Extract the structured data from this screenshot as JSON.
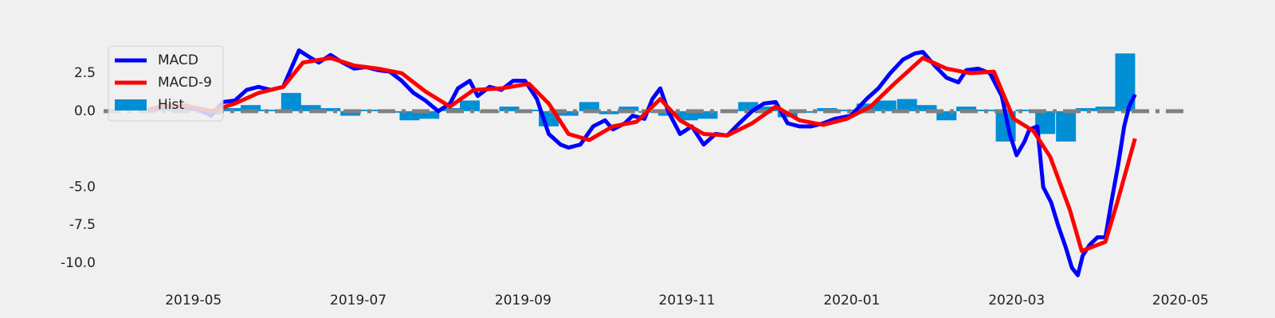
{
  "chart_data": {
    "type": "line",
    "xlim": [
      2019.242,
      2020.34
    ],
    "xticks": [
      {
        "value": 2019.333,
        "label": "2019-05"
      },
      {
        "value": 2019.5,
        "label": "2019-07"
      },
      {
        "value": 2019.667,
        "label": "2019-09"
      },
      {
        "value": 2019.833,
        "label": "2019-11"
      },
      {
        "value": 2020.0,
        "label": "2020-01"
      },
      {
        "value": 2020.167,
        "label": "2020-03"
      },
      {
        "value": 2020.333,
        "label": "2020-05"
      }
    ],
    "ylim": [
      -11.1,
      4.7
    ],
    "yticks": [
      2.5,
      0.0,
      -5.0,
      -7.5,
      -10.0
    ],
    "grid": false,
    "legend": "upper left",
    "hline": {
      "y": 0,
      "color": "#808080",
      "style": "dashdot"
    },
    "series": [
      {
        "name": "Hist",
        "type": "bar",
        "color": "#008fd5",
        "x": [
          2019.291,
          2019.311,
          2019.331,
          2019.351,
          2019.371,
          2019.391,
          2019.411,
          2019.432,
          2019.452,
          2019.472,
          2019.492,
          2019.512,
          2019.532,
          2019.552,
          2019.572,
          2019.593,
          2019.613,
          2019.633,
          2019.653,
          2019.673,
          2019.693,
          2019.713,
          2019.734,
          2019.754,
          2019.774,
          2019.794,
          2019.814,
          2019.834,
          2019.854,
          2019.874,
          2019.895,
          2019.915,
          2019.935,
          2019.955,
          2019.975,
          2019.995,
          2020.015,
          2020.035,
          2020.056,
          2020.076,
          2020.096,
          2020.116,
          2020.136,
          2020.156,
          2020.176,
          2020.196,
          2020.217,
          2020.237,
          2020.257,
          2020.277
        ],
        "values": [
          0.1,
          0.3,
          0.2,
          -0.2,
          0.2,
          0.4,
          0.1,
          1.2,
          0.4,
          0.2,
          -0.3,
          0.1,
          -0.1,
          -0.6,
          -0.5,
          0.2,
          0.7,
          -0.1,
          0.3,
          0.1,
          -1.0,
          -0.3,
          0.6,
          -0.2,
          0.3,
          -0.1,
          -0.3,
          -0.6,
          -0.5,
          0.0,
          0.6,
          0.3,
          -0.4,
          -0.1,
          0.2,
          0.1,
          0.5,
          0.7,
          0.8,
          0.4,
          -0.6,
          0.3,
          0.1,
          -2.0,
          0.1,
          -1.5,
          -2.0,
          0.2,
          0.3,
          3.8
        ]
      },
      {
        "name": "MACD",
        "color": "#0000ff",
        "x": [
          2019.287,
          2019.299,
          2019.311,
          2019.323,
          2019.339,
          2019.351,
          2019.363,
          2019.375,
          2019.387,
          2019.399,
          2019.411,
          2019.424,
          2019.432,
          2019.44,
          2019.452,
          2019.46,
          2019.472,
          2019.484,
          2019.496,
          2019.508,
          2019.52,
          2019.532,
          2019.544,
          2019.556,
          2019.568,
          2019.581,
          2019.593,
          2019.601,
          2019.613,
          2019.621,
          2019.633,
          2019.645,
          2019.657,
          2019.669,
          2019.681,
          2019.693,
          2019.705,
          2019.713,
          2019.725,
          2019.738,
          2019.75,
          2019.758,
          2019.77,
          2019.778,
          2019.79,
          2019.798,
          2019.806,
          2019.814,
          2019.826,
          2019.838,
          2019.85,
          2019.862,
          2019.874,
          2019.886,
          2019.899,
          2019.911,
          2019.923,
          2019.935,
          2019.947,
          2019.959,
          2019.971,
          2019.983,
          2019.999,
          2020.015,
          2020.027,
          2020.039,
          2020.052,
          2020.064,
          2020.072,
          2020.084,
          2020.096,
          2020.108,
          2020.116,
          2020.128,
          2020.14,
          2020.152,
          2020.16,
          2020.167,
          2020.175,
          2020.18,
          2020.188,
          2020.194,
          2020.202,
          2020.209,
          2020.217,
          2020.223,
          2020.229,
          2020.234,
          2020.241,
          2020.249,
          2020.257,
          2020.263,
          2020.27,
          2020.276,
          2020.281,
          2020.287
        ],
        "values": [
          0.1,
          0.2,
          0.4,
          0.3,
          0.1,
          -0.3,
          0.6,
          0.7,
          1.4,
          1.6,
          1.4,
          1.6,
          2.8,
          4.0,
          3.5,
          3.2,
          3.7,
          3.2,
          2.8,
          2.9,
          2.7,
          2.6,
          2.0,
          1.2,
          0.7,
          0.0,
          0.5,
          1.5,
          2.0,
          1.0,
          1.6,
          1.4,
          2.0,
          2.0,
          0.8,
          -1.5,
          -2.2,
          -2.4,
          -2.2,
          -1.0,
          -0.6,
          -1.2,
          -0.8,
          -0.3,
          -0.5,
          0.8,
          1.5,
          0.0,
          -1.5,
          -1.0,
          -2.2,
          -1.5,
          -1.6,
          -0.8,
          0.0,
          0.5,
          0.6,
          -0.8,
          -1.0,
          -1.0,
          -0.8,
          -0.5,
          -0.3,
          0.8,
          1.5,
          2.5,
          3.4,
          3.8,
          3.9,
          3.0,
          2.2,
          1.9,
          2.7,
          2.8,
          2.5,
          1.0,
          -1.5,
          -2.9,
          -2.0,
          -1.2,
          -1.0,
          -5.0,
          -6.0,
          -7.5,
          -9.0,
          -10.3,
          -10.8,
          -9.5,
          -8.8,
          -8.3,
          -8.3,
          -6.0,
          -3.5,
          -1.0,
          0.3,
          1.1
        ]
      },
      {
        "name": "MACD-9",
        "color": "#ff0000",
        "x": [
          2019.287,
          2019.299,
          2019.323,
          2019.351,
          2019.375,
          2019.399,
          2019.424,
          2019.444,
          2019.472,
          2019.496,
          2019.52,
          2019.544,
          2019.568,
          2019.593,
          2019.617,
          2019.645,
          2019.673,
          2019.693,
          2019.713,
          2019.734,
          2019.758,
          2019.782,
          2019.806,
          2019.826,
          2019.85,
          2019.874,
          2019.899,
          2019.923,
          2019.947,
          2019.971,
          2019.995,
          2020.019,
          2020.043,
          2020.072,
          2020.096,
          2020.12,
          2020.144,
          2020.164,
          2020.184,
          2020.201,
          2020.221,
          2020.233,
          2020.257,
          2020.269,
          2020.287
        ],
        "values": [
          0.1,
          0.3,
          0.4,
          0.0,
          0.5,
          1.2,
          1.6,
          3.2,
          3.5,
          3.0,
          2.8,
          2.5,
          1.3,
          0.3,
          1.4,
          1.5,
          1.8,
          0.5,
          -1.5,
          -1.9,
          -1.0,
          -0.7,
          0.8,
          -0.6,
          -1.5,
          -1.6,
          -0.8,
          0.3,
          -0.6,
          -0.9,
          -0.5,
          0.3,
          1.8,
          3.5,
          2.8,
          2.5,
          2.6,
          -0.5,
          -1.3,
          -3.0,
          -6.5,
          -9.2,
          -8.6,
          -6.0,
          -1.8
        ]
      }
    ]
  }
}
